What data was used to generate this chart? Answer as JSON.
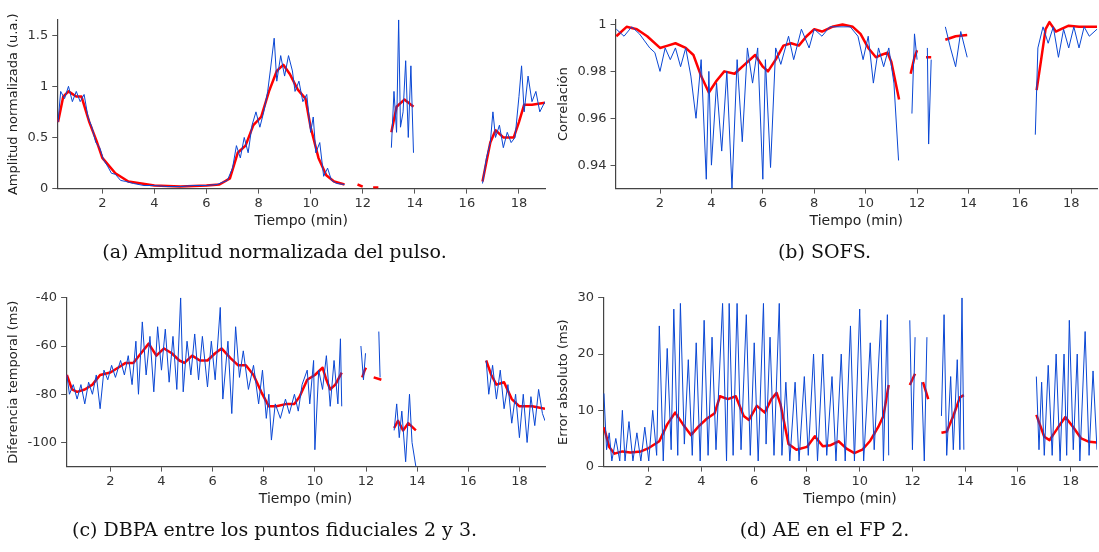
{
  "chart_data": [
    {
      "type": "line",
      "xlabel": "Tiempo (min)",
      "ylabel": "Amplitud normalizada (u.a.)",
      "annotations": [
        "(a) Amplitud normalizada del pulso."
      ],
      "xlim": [
        0.27,
        19
      ],
      "ylim": [
        0,
        1.65
      ],
      "xticks": [
        2,
        4,
        6,
        8,
        10,
        12,
        14,
        16,
        18
      ],
      "yticks": [
        0,
        0.5,
        1,
        1.5
      ],
      "grid": false,
      "legend": false,
      "series": [
        {
          "color": "#0a47d4",
          "x": [
            0.3,
            0.4,
            0.55,
            0.7,
            0.85,
            1.0,
            1.15,
            1.3,
            1.45,
            1.6,
            1.75,
            1.9,
            2.05,
            2.2,
            2.35,
            2.5,
            2.7,
            2.9,
            3.2,
            3.6,
            4.0,
            4.5,
            5.0,
            5.5,
            6.0,
            6.4,
            6.8,
            7.0,
            7.15,
            7.3,
            7.45,
            7.6,
            7.75,
            7.9,
            8.05,
            8.2,
            8.35,
            8.45,
            8.6,
            8.7,
            8.85,
            9.0,
            9.15,
            9.3,
            9.4,
            9.55,
            9.7,
            9.85,
            10.0,
            10.1,
            10.2,
            10.35,
            10.5,
            10.65,
            10.8,
            11.0,
            11.3,
            12.5,
            13.1,
            13.2,
            13.3,
            13.38,
            13.45,
            13.55,
            13.65,
            13.75,
            13.85,
            13.95,
            15.0,
            16.6,
            16.75,
            16.9,
            17.0,
            17.1,
            17.25,
            17.4,
            17.55,
            17.7,
            17.85,
            18.0,
            18.1,
            18.2,
            18.35,
            18.5,
            18.65,
            18.8,
            19.0
          ],
          "values": [
            0.65,
            0.95,
            0.88,
            1.0,
            0.85,
            0.95,
            0.85,
            0.92,
            0.7,
            0.6,
            0.45,
            0.4,
            0.28,
            0.22,
            0.15,
            0.14,
            0.08,
            0.07,
            0.05,
            0.03,
            0.03,
            0.02,
            0.02,
            0.03,
            0.03,
            0.04,
            0.08,
            0.2,
            0.42,
            0.3,
            0.5,
            0.35,
            0.62,
            0.75,
            0.6,
            0.75,
            0.95,
            1.15,
            1.47,
            1.05,
            1.3,
            1.1,
            1.3,
            1.15,
            0.95,
            1.05,
            0.85,
            0.92,
            0.55,
            0.7,
            0.35,
            0.45,
            0.12,
            0.2,
            0.08,
            0.05,
            0.04,
            null,
            0.4,
            0.95,
            0.55,
            1.65,
            0.6,
            0.75,
            1.25,
            0.5,
            1.2,
            0.35,
            null,
            0.05,
            0.3,
            0.45,
            0.75,
            0.5,
            0.62,
            0.4,
            0.55,
            0.45,
            0.5,
            0.9,
            1.2,
            0.75,
            1.1,
            0.85,
            0.95,
            0.75,
            0.85
          ]
        },
        {
          "color": "#ff0000",
          "x": [
            0.3,
            0.5,
            0.7,
            1.0,
            1.2,
            1.5,
            1.8,
            2.0,
            2.5,
            3.0,
            4.0,
            5.0,
            6.0,
            6.5,
            6.9,
            7.2,
            7.5,
            7.8,
            8.1,
            8.4,
            8.7,
            8.95,
            9.2,
            9.5,
            9.8,
            10.0,
            10.3,
            10.6,
            10.9,
            11.3,
            11.5,
            11.8,
            12.0,
            12.2,
            12.4,
            12.6,
            12.8,
            13.1,
            13.3,
            13.6,
            13.95,
            15.0,
            16.6,
            16.9,
            17.1,
            17.4,
            17.8,
            18.0,
            18.2,
            18.5,
            19.0
          ],
          "values": [
            0.65,
            0.9,
            0.95,
            0.9,
            0.9,
            0.65,
            0.45,
            0.3,
            0.15,
            0.07,
            0.03,
            0.02,
            0.03,
            0.04,
            0.1,
            0.35,
            0.42,
            0.62,
            0.7,
            0.95,
            1.15,
            1.21,
            1.12,
            0.97,
            0.88,
            0.6,
            0.3,
            0.13,
            0.07,
            0.04,
            null,
            0.04,
            0.02,
            null,
            0.01,
            0.01,
            null,
            0.55,
            0.8,
            0.87,
            0.8,
            null,
            0.07,
            0.45,
            0.57,
            0.5,
            0.5,
            0.65,
            0.82,
            0.82,
            0.84
          ]
        }
      ]
    },
    {
      "type": "line",
      "xlabel": "Tiempo (min)",
      "ylabel": "Correlación",
      "annotations": [
        "(b) SOFS."
      ],
      "xlim": [
        0.27,
        19
      ],
      "ylim": [
        0.93,
        1.002
      ],
      "xticks": [
        2,
        4,
        6,
        8,
        10,
        12,
        14,
        16,
        18
      ],
      "yticks": [
        0.94,
        0.96,
        0.98,
        1
      ],
      "grid": false,
      "legend": false,
      "series": [
        {
          "color": "#0a47d4",
          "x": [
            0.3,
            0.6,
            0.9,
            1.2,
            1.4,
            1.6,
            1.8,
            2.0,
            2.2,
            2.4,
            2.6,
            2.8,
            3.0,
            3.2,
            3.4,
            3.6,
            3.8,
            3.9,
            4.0,
            4.2,
            4.4,
            4.6,
            4.8,
            5.0,
            5.2,
            5.4,
            5.6,
            5.8,
            6.0,
            6.1,
            6.3,
            6.5,
            6.7,
            7.0,
            7.2,
            7.5,
            7.8,
            8.0,
            8.3,
            8.6,
            9.0,
            9.4,
            9.7,
            9.9,
            10.1,
            10.3,
            10.5,
            10.7,
            10.9,
            11.1,
            11.28,
            11.5,
            11.8,
            11.9,
            12.0,
            12.2,
            12.4,
            12.45,
            12.55,
            12.8,
            13.1,
            13.3,
            13.5,
            13.7,
            13.95,
            15.0,
            16.6,
            16.7,
            16.9,
            17.1,
            17.3,
            17.5,
            17.7,
            17.9,
            18.1,
            18.3,
            18.5,
            18.7,
            19.0
          ],
          "values": [
            0.998,
            0.995,
            0.999,
            0.996,
            0.993,
            0.99,
            0.988,
            0.98,
            0.99,
            0.985,
            0.99,
            0.982,
            0.99,
            0.978,
            0.96,
            0.985,
            0.934,
            0.98,
            0.94,
            0.975,
            0.946,
            0.98,
            0.93,
            0.985,
            0.95,
            0.99,
            0.975,
            0.99,
            0.934,
            0.985,
            0.939,
            0.99,
            0.983,
            0.995,
            0.985,
            0.998,
            0.99,
            0.998,
            0.995,
            0.999,
            0.999,
            0.999,
            0.995,
            0.985,
            0.995,
            0.975,
            0.99,
            0.982,
            0.99,
            0.975,
            0.942,
            null,
            0.962,
            0.996,
            0.985,
            null,
            0.99,
            0.949,
            0.985,
            null,
            0.999,
            0.99,
            0.982,
            0.997,
            0.986,
            null,
            0.953,
            0.99,
            0.999,
            0.992,
            0.999,
            0.986,
            0.998,
            0.99,
            0.999,
            0.99,
            0.999,
            0.995,
            0.998
          ]
        },
        {
          "color": "#ff0000",
          "x": [
            0.3,
            0.7,
            1.1,
            1.5,
            2.0,
            2.3,
            2.6,
            3.0,
            3.3,
            3.6,
            3.9,
            4.2,
            4.5,
            4.9,
            5.3,
            5.7,
            6.0,
            6.2,
            6.5,
            6.8,
            7.1,
            7.4,
            7.7,
            8.0,
            8.3,
            8.7,
            9.1,
            9.5,
            9.8,
            10.1,
            10.4,
            10.6,
            10.85,
            11.0,
            11.3,
            11.5,
            11.75,
            11.9,
            12.0,
            12.2,
            12.35,
            12.55,
            12.8,
            13.1,
            13.5,
            13.95,
            15.0,
            16.65,
            16.8,
            17.0,
            17.15,
            17.4,
            17.6,
            17.9,
            18.3,
            19.0
          ],
          "values": [
            0.995,
            0.999,
            0.998,
            0.995,
            0.99,
            0.991,
            0.992,
            0.99,
            0.987,
            0.978,
            0.971,
            0.976,
            0.98,
            0.979,
            0.983,
            0.987,
            0.982,
            0.98,
            0.985,
            0.991,
            0.992,
            0.991,
            0.995,
            0.998,
            0.997,
            0.999,
            1.0,
            0.999,
            0.996,
            0.99,
            0.986,
            0.987,
            0.988,
            0.984,
            0.968,
            null,
            0.979,
            0.986,
            0.989,
            null,
            0.986,
            0.986,
            null,
            0.9935,
            0.995,
            0.9955,
            null,
            0.972,
            0.983,
            0.998,
            1.001,
            0.997,
            0.998,
            0.9995,
            0.999,
            0.999
          ]
        }
      ]
    },
    {
      "type": "line",
      "xlabel": "Tiempo (min)",
      "ylabel": "Diferencia temporal (ms)",
      "annotations": [
        "(c) DBPA entre los puntos fiduciales 2 y 3."
      ],
      "xlim": [
        0.27,
        19
      ],
      "ylim": [
        -110,
        -40
      ],
      "xticks": [
        2,
        4,
        6,
        8,
        10,
        12,
        14,
        16,
        18
      ],
      "yticks": [
        -100,
        -80,
        -60,
        -40
      ],
      "grid": false,
      "legend": false,
      "series": [
        {
          "color": "#0a47d4",
          "x": [
            0.3,
            0.4,
            0.55,
            0.7,
            0.85,
            1.0,
            1.15,
            1.3,
            1.45,
            1.6,
            1.75,
            1.9,
            2.05,
            2.2,
            2.4,
            2.55,
            2.7,
            2.85,
            3.0,
            3.1,
            3.25,
            3.4,
            3.55,
            3.7,
            3.85,
            4.0,
            4.15,
            4.3,
            4.45,
            4.6,
            4.75,
            4.85,
            5.0,
            5.15,
            5.3,
            5.45,
            5.6,
            5.8,
            5.95,
            6.1,
            6.3,
            6.4,
            6.6,
            6.75,
            6.9,
            7.05,
            7.2,
            7.4,
            7.6,
            7.8,
            7.95,
            8.1,
            8.2,
            8.3,
            8.45,
            8.65,
            8.85,
            9.0,
            9.2,
            9.35,
            9.5,
            9.7,
            9.8,
            9.95,
            10.0,
            10.15,
            10.3,
            10.45,
            10.6,
            10.75,
            10.9,
            11.0,
            11.05,
            11.4,
            11.8,
            11.9,
            11.98,
            12.2,
            12.5,
            12.55,
            12.8,
            13.1,
            13.2,
            13.3,
            13.4,
            13.55,
            13.7,
            13.8,
            13.95,
            15.0,
            16.7,
            16.8,
            16.95,
            17.1,
            17.25,
            17.4,
            17.55,
            17.7,
            17.85,
            18.0,
            18.15,
            18.3,
            18.45,
            18.6,
            18.75,
            18.9,
            19.0
          ],
          "values": [
            -72,
            -80,
            -76,
            -82,
            -76,
            -84,
            -75,
            -80,
            -72,
            -86,
            -70,
            -74,
            -68,
            -73,
            -66,
            -72,
            -64,
            -76,
            -58,
            -80,
            -50,
            -72,
            -56,
            -79,
            -52,
            -70,
            -53,
            -75,
            -56,
            -78,
            -40,
            -79,
            -58,
            -72,
            -55,
            -74,
            -56,
            -77,
            -58,
            -74,
            -44,
            -82,
            -58,
            -88,
            -52,
            -73,
            -62,
            -78,
            -68,
            -84,
            -70,
            -90,
            -80,
            -99,
            -84,
            -90,
            -82,
            -88,
            -80,
            -87,
            -76,
            -70,
            -84,
            -66,
            -103,
            -70,
            -78,
            -64,
            -85,
            -66,
            -84,
            -57,
            -85,
            null,
            -60,
            -74,
            -63,
            null,
            -54,
            -73,
            null,
            -95,
            -84,
            -98,
            -87,
            -108,
            -80,
            -100,
            -110,
            null,
            -66,
            -80,
            -68,
            -82,
            -70,
            -86,
            -76,
            -92,
            -80,
            -98,
            -80,
            -100,
            -81,
            -93,
            -78,
            -88,
            -91
          ]
        },
        {
          "color": "#ff0000",
          "x": [
            0.3,
            0.5,
            0.7,
            1.0,
            1.3,
            1.6,
            2.0,
            2.3,
            2.6,
            2.9,
            3.2,
            3.5,
            3.8,
            4.1,
            4.4,
            4.7,
            4.9,
            5.2,
            5.5,
            5.8,
            6.1,
            6.35,
            6.7,
            7.0,
            7.3,
            7.6,
            7.9,
            8.2,
            8.5,
            8.9,
            9.2,
            9.4,
            9.7,
            10.0,
            10.3,
            10.45,
            10.6,
            10.8,
            11.05,
            11.4,
            11.85,
            11.95,
            12.0,
            12.2,
            12.3,
            12.6,
            12.8,
            13.1,
            13.25,
            13.45,
            13.65,
            13.95,
            15.0,
            16.7,
            16.9,
            17.1,
            17.4,
            17.7,
            18.0,
            18.5,
            19.0
          ],
          "values": [
            -72,
            -78,
            -79,
            -78,
            -76,
            -72,
            -71,
            -69,
            -67,
            -67,
            -63,
            -59,
            -64,
            -61,
            -63,
            -66,
            -67,
            -64,
            -66,
            -66,
            -63,
            -61,
            -65,
            -68,
            -68,
            -72,
            -79,
            -85,
            -85,
            -84,
            -84,
            -81,
            -74,
            -72,
            -69,
            -74,
            -78,
            -76,
            -71,
            null,
            -73,
            -70,
            -69,
            null,
            -73,
            -74,
            null,
            -94,
            -91,
            -95,
            -92,
            -95,
            null,
            -66,
            -72,
            -76,
            -75,
            -82,
            -85,
            -85,
            -86
          ]
        }
      ]
    },
    {
      "type": "line",
      "xlabel": "Tiempo (min)",
      "ylabel": "Error absoluto (ms)",
      "annotations": [
        "(d) AE en el FP 2."
      ],
      "xlim": [
        0.27,
        19
      ],
      "ylim": [
        0,
        30
      ],
      "xticks": [
        2,
        4,
        6,
        8,
        10,
        12,
        14,
        16,
        18
      ],
      "yticks": [
        0,
        10,
        20,
        30
      ],
      "grid": false,
      "legend": false,
      "series": [
        {
          "color": "#0a47d4",
          "x": [
            0.3,
            0.4,
            0.5,
            0.6,
            0.75,
            0.9,
            1.0,
            1.1,
            1.25,
            1.4,
            1.55,
            1.7,
            1.85,
            2.0,
            2.15,
            2.3,
            2.4,
            2.55,
            2.7,
            2.85,
            2.95,
            3.1,
            3.2,
            3.35,
            3.5,
            3.65,
            3.8,
            3.95,
            4.1,
            4.25,
            4.4,
            4.55,
            4.8,
            4.95,
            5.05,
            5.2,
            5.35,
            5.5,
            5.7,
            5.85,
            6.0,
            6.15,
            6.35,
            6.45,
            6.6,
            6.75,
            6.95,
            7.05,
            7.2,
            7.35,
            7.55,
            7.7,
            7.9,
            8.05,
            8.25,
            8.4,
            8.6,
            8.75,
            8.95,
            9.1,
            9.3,
            9.45,
            9.65,
            9.8,
            10.0,
            10.15,
            10.4,
            10.55,
            10.8,
            10.9,
            11.05,
            11.1,
            11.5,
            11.9,
            12.0,
            12.1,
            12.2,
            12.35,
            12.45,
            12.55,
            12.8,
            13.1,
            13.2,
            13.3,
            13.45,
            13.55,
            13.7,
            13.8,
            13.88,
            13.95,
            15.0,
            16.7,
            16.8,
            16.9,
            17.0,
            17.15,
            17.3,
            17.45,
            17.6,
            17.75,
            17.85,
            17.95,
            18.1,
            18.25,
            18.35,
            18.55,
            18.7,
            18.85,
            19.0
          ],
          "values": [
            13,
            3,
            6,
            1,
            5,
            1,
            10,
            1,
            8,
            1,
            6,
            1,
            7,
            1,
            10,
            2,
            25,
            1,
            21,
            3,
            28,
            2,
            29,
            4,
            19,
            2,
            22,
            1,
            26,
            2,
            23,
            3,
            29,
            1,
            29,
            2,
            29,
            3,
            27,
            2,
            22,
            1,
            29,
            4,
            23,
            2,
            29,
            2,
            15,
            1,
            15,
            1,
            16,
            2,
            20,
            1,
            20,
            2,
            16,
            1,
            20,
            1,
            25,
            1,
            28,
            1,
            22,
            3,
            26,
            1,
            27,
            2,
            null,
            26,
            3,
            23,
            null,
            15,
            1,
            23,
            null,
            9,
            27,
            2,
            16,
            3,
            19,
            3,
            30,
            3,
            null,
            16,
            3,
            15,
            2,
            18,
            2,
            20,
            1,
            20,
            2,
            26,
            3,
            20,
            1,
            24,
            2,
            17,
            3
          ]
        },
        {
          "color": "#ff0000",
          "x": [
            0.3,
            0.5,
            0.7,
            1.0,
            1.3,
            1.7,
            2.0,
            2.4,
            2.7,
            3.0,
            3.3,
            3.6,
            3.9,
            4.2,
            4.5,
            4.7,
            5.0,
            5.3,
            5.6,
            5.8,
            6.1,
            6.4,
            6.65,
            6.85,
            7.0,
            7.3,
            7.6,
            8.0,
            8.3,
            8.6,
            8.9,
            9.2,
            9.5,
            9.8,
            10.1,
            10.4,
            10.7,
            10.9,
            11.1,
            11.5,
            11.9,
            12.1,
            12.25,
            12.4,
            12.6,
            12.8,
            13.1,
            13.3,
            13.55,
            13.8,
            13.95,
            15.0,
            16.7,
            17.0,
            17.2,
            17.5,
            17.8,
            18.1,
            18.4,
            18.7,
            19.0
          ],
          "values": [
            7,
            3.5,
            2.3,
            2.7,
            2.5,
            2.7,
            3.3,
            4.5,
            7.5,
            9.6,
            7.5,
            5.6,
            7.2,
            8.5,
            9.5,
            12.5,
            12,
            12.5,
            9,
            8.3,
            10.8,
            9.6,
            12,
            13.1,
            11,
            4,
            3,
            3.5,
            5.4,
            3.6,
            3.8,
            4.5,
            3.2,
            2.4,
            3,
            4.6,
            7,
            9,
            14.5,
            null,
            14.5,
            16.5,
            null,
            15,
            12,
            null,
            6,
            6.2,
            9,
            12.3,
            12.7,
            null,
            9.2,
            5.3,
            4.7,
            6.8,
            8.8,
            7,
            5,
            4.4,
            4.3
          ]
        }
      ]
    }
  ]
}
